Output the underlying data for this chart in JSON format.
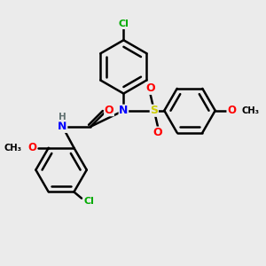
{
  "bg_color": "#ebebeb",
  "bond_color": "#000000",
  "N_color": "#0000ff",
  "O_color": "#ff0000",
  "S_color": "#cccc00",
  "Cl_color": "#00aa00",
  "H_color": "#607070",
  "line_width": 1.8,
  "figsize": [
    3.0,
    3.0
  ],
  "dpi": 100,
  "xlim": [
    0,
    10
  ],
  "ylim": [
    0,
    10
  ]
}
